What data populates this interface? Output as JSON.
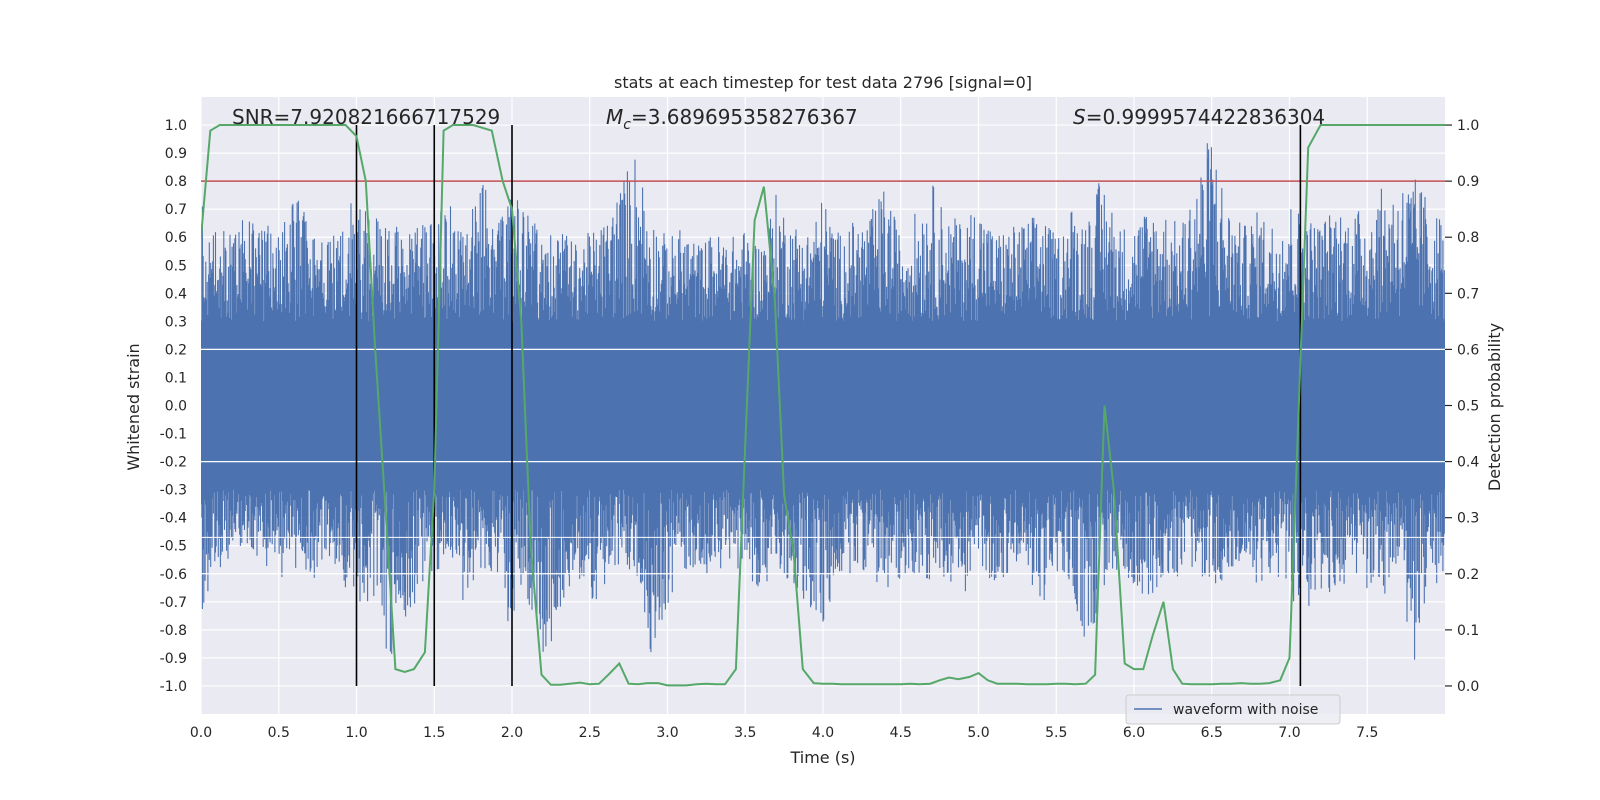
{
  "chart_data": {
    "type": "line",
    "title": "stats at each timestep for test data 2796 [signal=0]",
    "xlabel": "Time (s)",
    "ylabel_left": "Whitened strain",
    "ylabel_right": "Detection probability",
    "xlim": [
      0.0,
      8.0
    ],
    "ylim_left": [
      -1.1,
      1.1
    ],
    "ylim_right": [
      -0.05,
      1.05
    ],
    "x_ticks": [
      "0.0",
      "0.5",
      "1.0",
      "1.5",
      "2.0",
      "2.5",
      "3.0",
      "3.5",
      "4.0",
      "4.5",
      "5.0",
      "5.5",
      "6.0",
      "6.5",
      "7.0",
      "7.5"
    ],
    "y_left_ticks": [
      "-1.0",
      "-0.9",
      "-0.8",
      "-0.7",
      "-0.6",
      "-0.5",
      "-0.4",
      "-0.3",
      "-0.2",
      "-0.1",
      "0.0",
      "0.1",
      "0.2",
      "0.3",
      "0.4",
      "0.5",
      "0.6",
      "0.7",
      "0.8",
      "0.9",
      "1.0"
    ],
    "y_right_ticks": [
      "0.0",
      "0.1",
      "0.2",
      "0.3",
      "0.4",
      "0.5",
      "0.6",
      "0.7",
      "0.8",
      "0.9",
      "1.0"
    ],
    "annotations": {
      "snr": "SNR=7.920821666717529",
      "mc_symbol": "M",
      "mc_subscript": "c",
      "mc_value": "=3.689695358276367",
      "s_symbol": "S",
      "s_value": "=0.9999574422836304"
    },
    "threshold": {
      "value": 0.9,
      "axis": "right",
      "color": "#c44e52"
    },
    "vertical_markers": [
      1.0,
      1.5,
      2.0,
      7.07
    ],
    "legend": {
      "label": "waveform with noise",
      "location": "bottom-right"
    },
    "series": [
      {
        "name": "waveform with noise",
        "axis": "left",
        "color": "#4c72b0",
        "envelope": {
          "t": [
            0.0,
            0.1,
            0.2,
            0.3,
            0.4,
            0.5,
            0.6,
            0.7,
            0.8,
            0.9,
            1.0,
            1.1,
            1.2,
            1.3,
            1.4,
            1.5,
            1.6,
            1.7,
            1.8,
            1.9,
            2.0,
            2.1,
            2.2,
            2.3,
            2.4,
            2.5,
            2.6,
            2.7,
            2.8,
            2.9,
            3.0,
            3.1,
            3.2,
            3.3,
            3.4,
            3.5,
            3.6,
            3.7,
            3.8,
            3.9,
            4.0,
            4.1,
            4.2,
            4.3,
            4.4,
            4.5,
            4.6,
            4.7,
            4.8,
            4.9,
            5.0,
            5.1,
            5.2,
            5.3,
            5.4,
            5.5,
            5.6,
            5.7,
            5.8,
            5.9,
            6.0,
            6.1,
            6.2,
            6.3,
            6.4,
            6.5,
            6.6,
            6.7,
            6.8,
            6.9,
            7.0,
            7.1,
            7.2,
            7.3,
            7.4,
            7.5,
            7.6,
            7.7,
            7.8,
            7.9,
            8.0
          ],
          "upper": [
            0.72,
            0.62,
            0.64,
            0.68,
            0.66,
            0.6,
            0.82,
            0.62,
            0.58,
            0.64,
            0.78,
            0.66,
            0.72,
            0.6,
            0.66,
            0.68,
            0.72,
            0.6,
            0.84,
            0.64,
            0.81,
            0.7,
            0.6,
            0.64,
            0.58,
            0.62,
            0.66,
            0.8,
            0.93,
            0.68,
            0.6,
            0.64,
            0.58,
            0.62,
            0.6,
            0.63,
            0.58,
            0.76,
            0.66,
            0.63,
            0.75,
            0.62,
            0.66,
            0.68,
            0.79,
            0.6,
            0.7,
            0.8,
            0.68,
            0.66,
            0.74,
            0.62,
            0.64,
            0.66,
            0.7,
            0.6,
            0.72,
            0.68,
            0.84,
            0.64,
            0.66,
            0.72,
            0.7,
            0.64,
            0.82,
            1.0,
            0.72,
            0.64,
            0.7,
            0.66,
            0.74,
            0.68,
            0.66,
            0.72,
            0.69,
            0.72,
            0.78,
            0.8,
            0.82,
            0.74,
            0.66
          ],
          "lower": [
            -0.76,
            -0.6,
            -0.54,
            -0.5,
            -0.56,
            -0.62,
            -0.58,
            -0.66,
            -0.52,
            -0.6,
            -0.79,
            -0.68,
            -0.97,
            -0.86,
            -0.66,
            -0.6,
            -0.58,
            -0.72,
            -0.58,
            -0.6,
            -0.86,
            -0.7,
            -0.92,
            -0.8,
            -0.6,
            -0.72,
            -0.66,
            -0.58,
            -0.62,
            -0.9,
            -0.72,
            -0.6,
            -0.58,
            -0.62,
            -0.56,
            -0.6,
            -0.66,
            -0.64,
            -0.62,
            -0.74,
            -0.81,
            -0.62,
            -0.6,
            -0.58,
            -0.7,
            -0.62,
            -0.6,
            -0.64,
            -0.62,
            -0.68,
            -0.58,
            -0.64,
            -0.6,
            -0.58,
            -0.72,
            -0.62,
            -0.66,
            -0.9,
            -0.66,
            -0.6,
            -0.64,
            -0.7,
            -0.6,
            -0.62,
            -0.58,
            -0.66,
            -0.62,
            -0.6,
            -0.64,
            -0.62,
            -0.66,
            -0.82,
            -0.7,
            -0.66,
            -0.62,
            -0.66,
            -0.7,
            -0.6,
            -0.94,
            -0.62,
            -0.66
          ]
        }
      },
      {
        "name": "detection probability",
        "axis": "right",
        "color": "#55a868",
        "x": [
          0.0,
          0.06,
          0.12,
          0.25,
          0.5,
          0.75,
          0.93,
          1.0,
          1.06,
          1.12,
          1.19,
          1.25,
          1.31,
          1.37,
          1.44,
          1.5,
          1.56,
          1.62,
          1.75,
          1.87,
          1.94,
          2.0,
          2.06,
          2.12,
          2.19,
          2.25,
          2.31,
          2.37,
          2.44,
          2.5,
          2.56,
          2.62,
          2.69,
          2.75,
          2.81,
          2.87,
          2.94,
          3.0,
          3.06,
          3.12,
          3.19,
          3.25,
          3.31,
          3.37,
          3.44,
          3.56,
          3.62,
          3.69,
          3.75,
          3.81,
          3.87,
          3.94,
          4.0,
          4.06,
          4.12,
          4.19,
          4.25,
          4.31,
          4.37,
          4.44,
          4.5,
          4.56,
          4.62,
          4.69,
          4.75,
          4.81,
          4.87,
          4.94,
          5.0,
          5.06,
          5.12,
          5.19,
          5.25,
          5.31,
          5.37,
          5.44,
          5.5,
          5.56,
          5.62,
          5.69,
          5.75,
          5.81,
          5.87,
          5.94,
          6.0,
          6.06,
          6.12,
          6.19,
          6.25,
          6.31,
          6.37,
          6.44,
          6.5,
          6.56,
          6.62,
          6.69,
          6.75,
          6.81,
          6.87,
          6.94,
          7.0,
          7.06,
          7.12,
          7.2,
          7.4,
          7.6,
          7.8,
          8.0
        ],
        "values": [
          0.8,
          0.99,
          1.0,
          1.0,
          1.0,
          1.0,
          1.0,
          0.98,
          0.9,
          0.6,
          0.3,
          0.03,
          0.025,
          0.03,
          0.06,
          0.35,
          0.99,
          1.0,
          1.0,
          0.99,
          0.9,
          0.85,
          0.65,
          0.25,
          0.02,
          0.002,
          0.002,
          0.004,
          0.006,
          0.003,
          0.004,
          0.02,
          0.04,
          0.004,
          0.003,
          0.005,
          0.005,
          0.001,
          0.001,
          0.001,
          0.003,
          0.004,
          0.003,
          0.003,
          0.03,
          0.83,
          0.89,
          0.69,
          0.34,
          0.24,
          0.03,
          0.005,
          0.004,
          0.004,
          0.003,
          0.003,
          0.003,
          0.003,
          0.003,
          0.003,
          0.003,
          0.004,
          0.003,
          0.004,
          0.01,
          0.015,
          0.012,
          0.016,
          0.023,
          0.01,
          0.004,
          0.004,
          0.004,
          0.003,
          0.003,
          0.003,
          0.004,
          0.004,
          0.003,
          0.004,
          0.02,
          0.5,
          0.35,
          0.04,
          0.03,
          0.03,
          0.09,
          0.15,
          0.03,
          0.004,
          0.003,
          0.003,
          0.003,
          0.004,
          0.004,
          0.005,
          0.004,
          0.004,
          0.005,
          0.01,
          0.05,
          0.5,
          0.96,
          1.0,
          1.0,
          1.0,
          1.0,
          1.0
        ]
      }
    ]
  }
}
